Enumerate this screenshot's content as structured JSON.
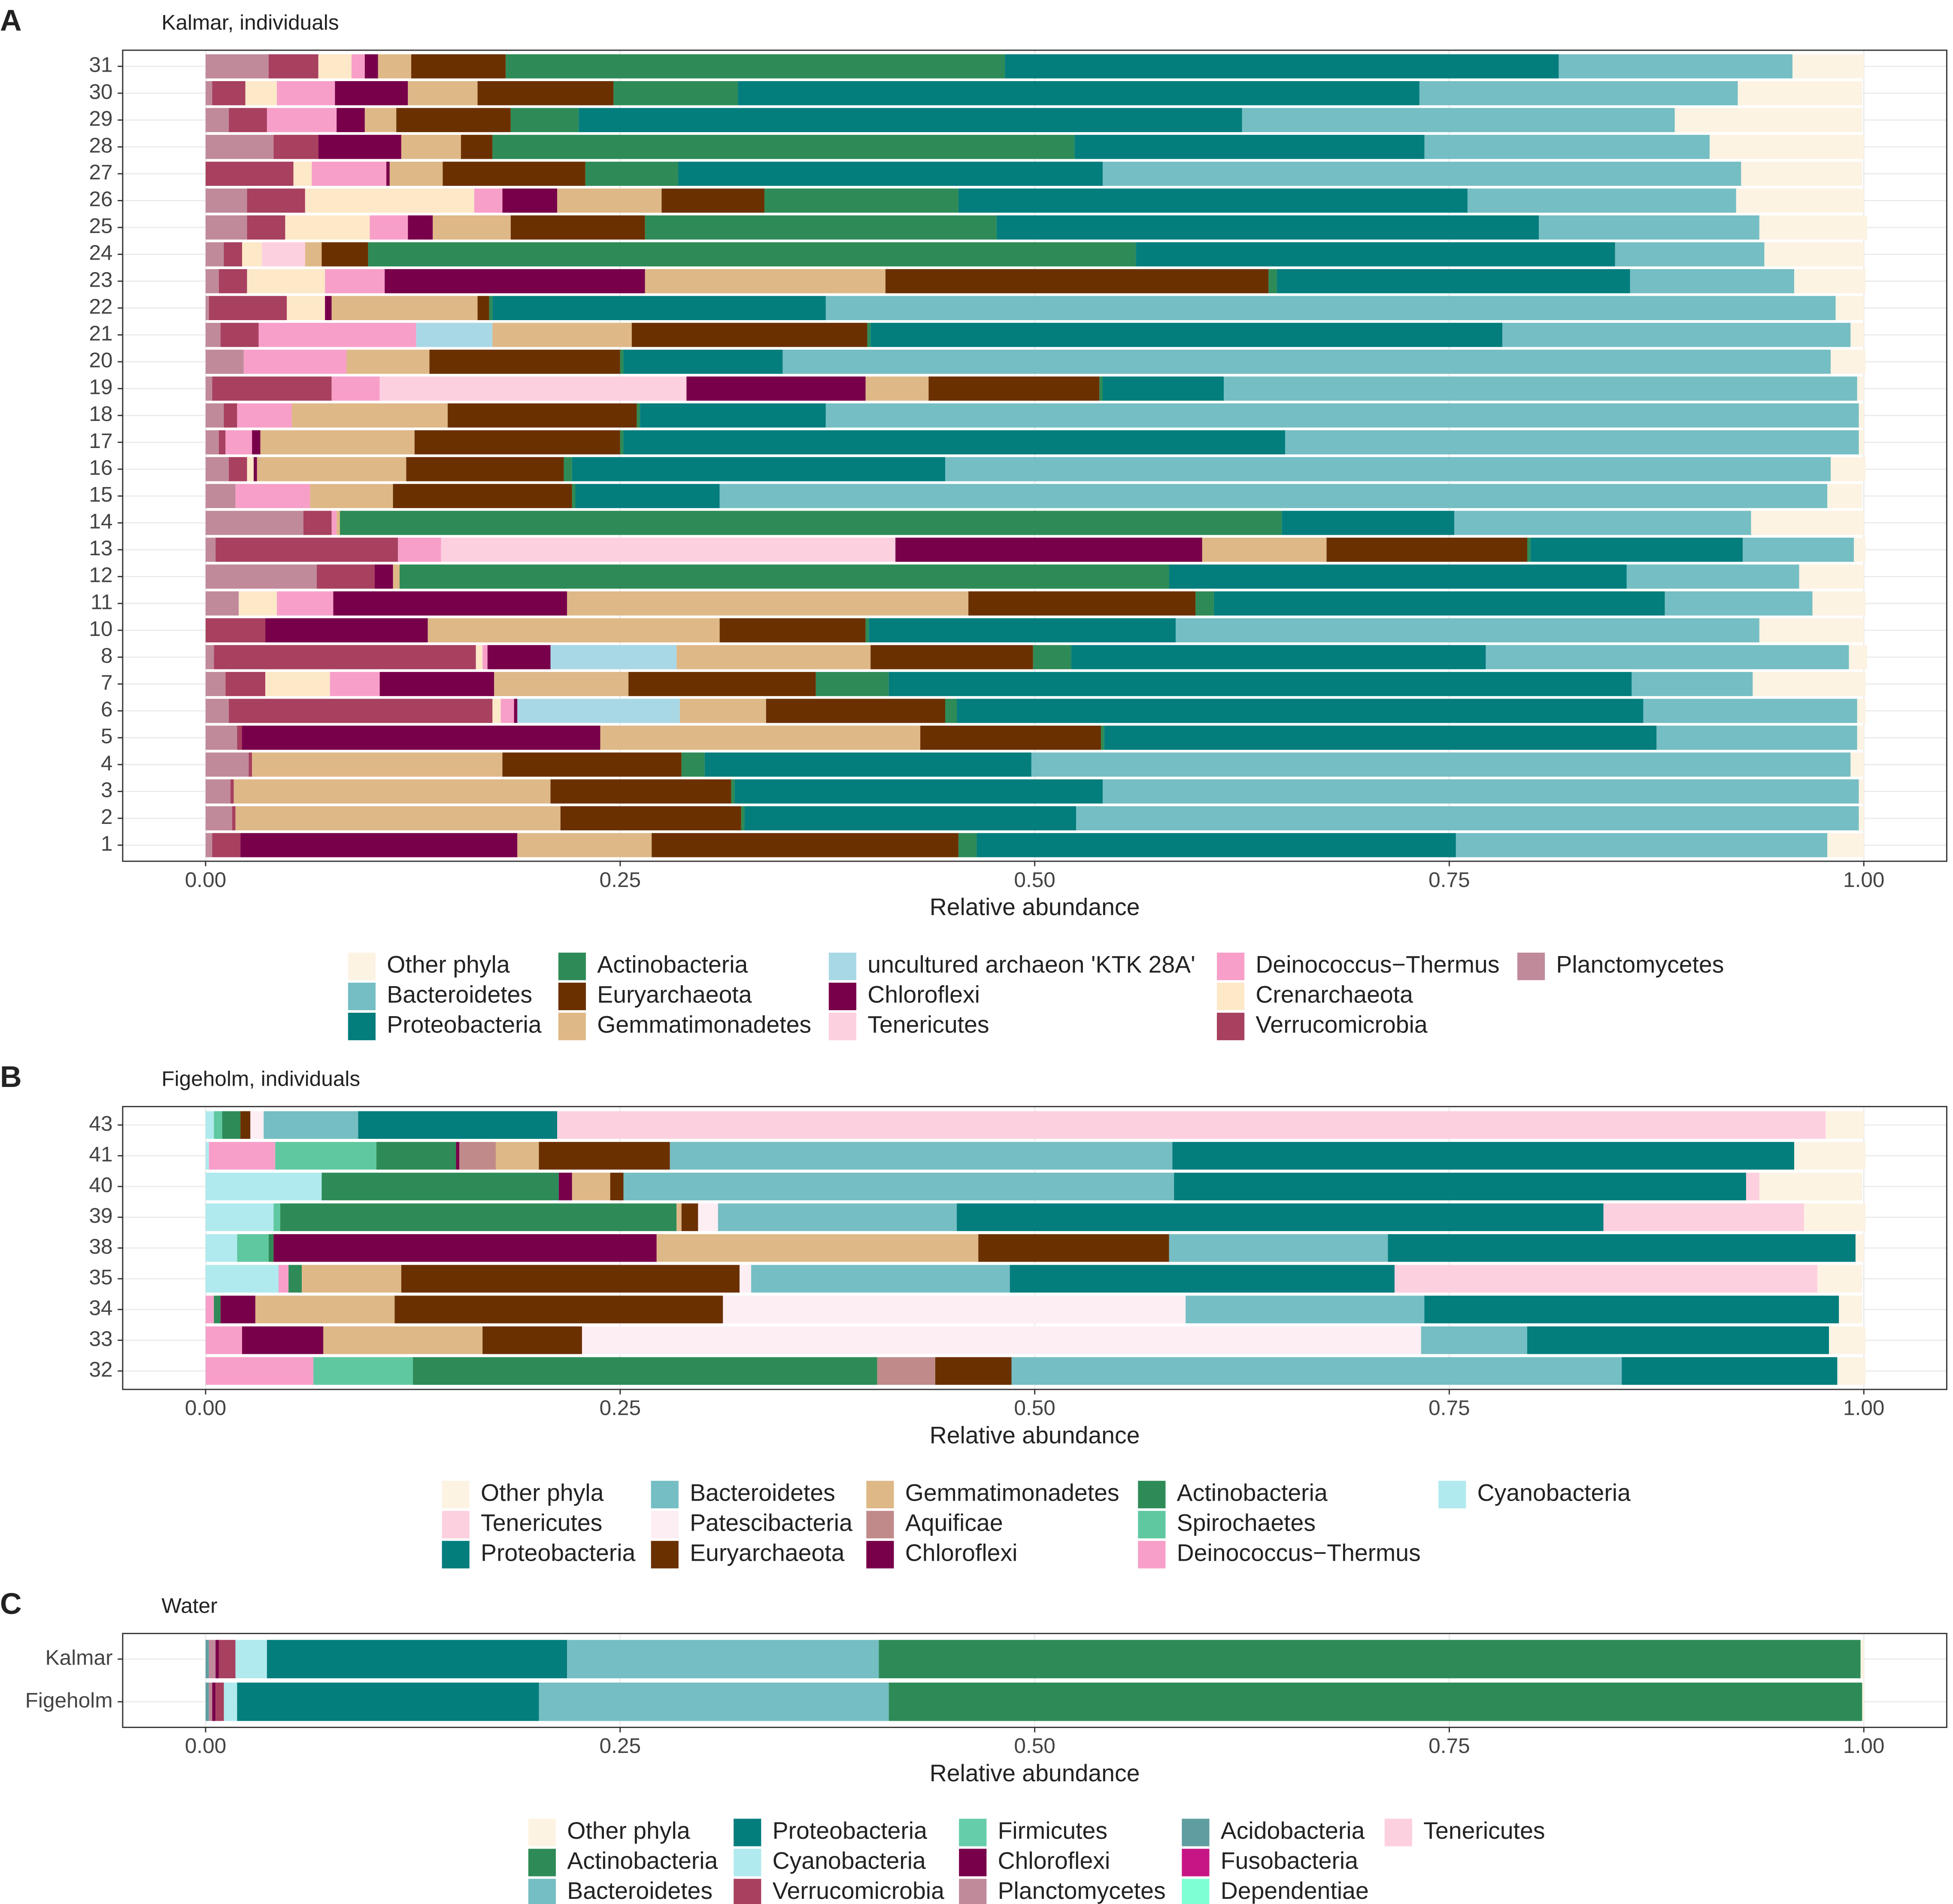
{
  "chart_data": [
    {
      "type": "bar",
      "orientation": "horizontal",
      "stacked": true,
      "label": "A",
      "title": "Kalmar, individuals",
      "xlabel": "Relative abundance",
      "categories": [
        "1",
        "2",
        "3",
        "4",
        "5",
        "6",
        "7",
        "8",
        "10",
        "11",
        "12",
        "13",
        "14",
        "15",
        "16",
        "17",
        "18",
        "19",
        "20",
        "21",
        "22",
        "23",
        "24",
        "25",
        "26",
        "27",
        "28",
        "29",
        "30",
        "31"
      ],
      "xlim": [
        -0.05,
        1.05
      ],
      "xticks": [
        {
          "value": 0,
          "label": "0.00"
        },
        {
          "value": 0.25,
          "label": "0.25"
        },
        {
          "value": 0.5,
          "label": "0.50"
        },
        {
          "value": 0.75,
          "label": "0.75"
        },
        {
          "value": 1,
          "label": "1.00"
        }
      ],
      "grid": true,
      "series": [
        {
          "name": "Other phyla",
          "color": "#fdf3e3",
          "values": [
            0.022,
            0.003,
            0.003,
            0.008,
            0.004,
            0.005,
            0.068,
            0.011,
            0.063,
            0.032,
            0.039,
            0.007,
            0.068,
            0.021,
            0.021,
            0.003,
            0.003,
            0.004,
            0.021,
            0.008,
            0.017,
            0.043,
            0.06,
            0.065,
            0.077,
            0.073,
            0.093,
            0.113,
            0.075,
            0.043
          ]
        },
        {
          "name": "Bacteroidetes",
          "color": "#75bec3",
          "values": [
            0.224,
            0.472,
            0.456,
            0.494,
            0.121,
            0.129,
            0.073,
            0.219,
            0.352,
            0.089,
            0.104,
            0.067,
            0.179,
            0.668,
            0.534,
            0.346,
            0.623,
            0.382,
            0.632,
            0.21,
            0.609,
            0.099,
            0.09,
            0.133,
            0.162,
            0.385,
            0.172,
            0.261,
            0.192,
            0.141
          ]
        },
        {
          "name": "Proteobacteria",
          "color": "#047d7d",
          "values": [
            0.289,
            0.2,
            0.222,
            0.197,
            0.333,
            0.414,
            0.448,
            0.25,
            0.185,
            0.272,
            0.276,
            0.128,
            0.104,
            0.087,
            0.225,
            0.399,
            0.112,
            0.073,
            0.096,
            0.381,
            0.201,
            0.213,
            0.289,
            0.327,
            0.307,
            0.256,
            0.211,
            0.4,
            0.411,
            0.334
          ]
        },
        {
          "name": "Actinobacteria",
          "color": "#2e8b57",
          "values": [
            0.011,
            0.002,
            0.002,
            0.014,
            0.002,
            0.007,
            0.044,
            0.023,
            0.002,
            0.011,
            0.464,
            0.002,
            0.568,
            0.002,
            0.005,
            0.002,
            0.002,
            0.002,
            0.002,
            0.002,
            0.002,
            0.005,
            0.463,
            0.212,
            0.117,
            0.056,
            0.351,
            0.041,
            0.075,
            0.301
          ]
        },
        {
          "name": "Euryarchaeota",
          "color": "#6b3000",
          "values": [
            0.185,
            0.109,
            0.109,
            0.108,
            0.109,
            0.108,
            0.113,
            0.098,
            0.088,
            0.137,
            0,
            0.121,
            0,
            0.108,
            0.095,
            0.124,
            0.114,
            0.103,
            0.115,
            0.142,
            0.007,
            0.231,
            0.028,
            0.081,
            0.062,
            0.086,
            0.019,
            0.069,
            0.082,
            0.057
          ]
        },
        {
          "name": "Gemmatimonadetes",
          "color": "#deb887",
          "values": [
            0.081,
            0.196,
            0.191,
            0.151,
            0.193,
            0.052,
            0.081,
            0.117,
            0.176,
            0.242,
            0.004,
            0.075,
            0.002,
            0.05,
            0.09,
            0.093,
            0.094,
            0.038,
            0.05,
            0.084,
            0.088,
            0.145,
            0.01,
            0.047,
            0.063,
            0.032,
            0.036,
            0.019,
            0.042,
            0.02
          ]
        },
        {
          "name": "uncultured archaeon 'KTK 28A'",
          "color": "#a8d8e6",
          "values": [
            0,
            0,
            0,
            0,
            0,
            0.098,
            0,
            0.076,
            0,
            0,
            0,
            0,
            0,
            0,
            0,
            0,
            0,
            0,
            0,
            0.046,
            0,
            0,
            0,
            0,
            0,
            0,
            0,
            0,
            0,
            0
          ]
        },
        {
          "name": "Chloroflexi",
          "color": "#78004a",
          "values": [
            0.167,
            0,
            0,
            0,
            0.216,
            0.002,
            0.069,
            0.038,
            0.098,
            0.141,
            0.011,
            0.185,
            0,
            0,
            0.002,
            0.005,
            0,
            0.108,
            0,
            0,
            0.004,
            0.157,
            0,
            0.015,
            0.033,
            0.002,
            0.05,
            0.017,
            0.044,
            0.008
          ]
        },
        {
          "name": "Tenericutes",
          "color": "#fdd0e0",
          "values": [
            0,
            0,
            0,
            0,
            0,
            0,
            0,
            0,
            0,
            0,
            0,
            0.274,
            0,
            0,
            0,
            0,
            0,
            0.185,
            0,
            0,
            0,
            0,
            0.026,
            0,
            0,
            0,
            0,
            0,
            0,
            0
          ]
        },
        {
          "name": "Deinococcus−Thermus",
          "color": "#f79fc9",
          "values": [
            0,
            0,
            0,
            0,
            0,
            0.008,
            0.03,
            0.003,
            0,
            0.034,
            0,
            0.026,
            0.003,
            0.045,
            0,
            0.016,
            0.033,
            0.029,
            0.062,
            0.095,
            0,
            0.036,
            0,
            0.023,
            0.017,
            0.045,
            0,
            0.042,
            0.035,
            0.008
          ]
        },
        {
          "name": "Crenarchaeota",
          "color": "#fde8c8",
          "values": [
            0,
            0,
            0,
            0,
            0,
            0.005,
            0.039,
            0.004,
            0,
            0.023,
            0,
            0,
            0,
            0,
            0.004,
            0,
            0,
            0,
            0,
            0,
            0.023,
            0.047,
            0.012,
            0.051,
            0.102,
            0.011,
            0,
            0,
            0.019,
            0.02
          ]
        },
        {
          "name": "Verrucomicrobia",
          "color": "#a8405f",
          "values": [
            0.017,
            0.002,
            0.002,
            0.002,
            0.003,
            0.159,
            0.024,
            0.158,
            0.036,
            0,
            0.035,
            0.11,
            0.017,
            0,
            0.011,
            0.004,
            0.008,
            0.072,
            0,
            0.023,
            0.047,
            0.017,
            0.011,
            0.023,
            0.035,
            0.053,
            0.027,
            0.023,
            0.02,
            0.03
          ]
        },
        {
          "name": "Planctomycetes",
          "color": "#c08a9a",
          "values": [
            0.004,
            0.016,
            0.015,
            0.026,
            0.019,
            0.014,
            0.012,
            0.005,
            0,
            0.02,
            0.067,
            0.006,
            0.059,
            0.018,
            0.014,
            0.008,
            0.011,
            0.004,
            0.023,
            0.009,
            0.002,
            0.008,
            0.011,
            0.025,
            0.025,
            0,
            0.041,
            0.014,
            0.004,
            0.038
          ]
        }
      ]
    },
    {
      "type": "bar",
      "orientation": "horizontal",
      "stacked": true,
      "label": "B",
      "title": "Figeholm, individuals",
      "xlabel": "Relative abundance",
      "categories": [
        "32",
        "33",
        "34",
        "35",
        "38",
        "39",
        "40",
        "41",
        "43"
      ],
      "xlim": [
        -0.05,
        1.05
      ],
      "xticks": [
        {
          "value": 0,
          "label": "0.00"
        },
        {
          "value": 0.25,
          "label": "0.25"
        },
        {
          "value": 0.5,
          "label": "0.50"
        },
        {
          "value": 0.75,
          "label": "0.75"
        },
        {
          "value": 1,
          "label": "1.00"
        }
      ],
      "grid": true,
      "series": [
        {
          "name": "Other phyla",
          "color": "#fdf3e3",
          "values": [
            0.017,
            0.022,
            0.014,
            0.027,
            0.005,
            0.037,
            0.062,
            0.043,
            0.023
          ]
        },
        {
          "name": "Tenericutes",
          "color": "#fdd0e0",
          "values": [
            0,
            0,
            0,
            0.255,
            0,
            0.121,
            0.008,
            0,
            0.765
          ]
        },
        {
          "name": "Proteobacteria",
          "color": "#047d7d",
          "values": [
            0.13,
            0.182,
            0.25,
            0.232,
            0.282,
            0.39,
            0.345,
            0.375,
            0.12
          ]
        },
        {
          "name": "Bacteroidetes",
          "color": "#75bec3",
          "values": [
            0.368,
            0.064,
            0.144,
            0.156,
            0.132,
            0.144,
            0.332,
            0.303,
            0.057
          ]
        },
        {
          "name": "Patescibacteria",
          "color": "#fdeef4",
          "values": [
            0,
            0.506,
            0.279,
            0.007,
            0,
            0.012,
            0,
            0,
            0.008
          ]
        },
        {
          "name": "Euryarchaeota",
          "color": "#6b3000",
          "values": [
            0.046,
            0.06,
            0.198,
            0.204,
            0.115,
            0.01,
            0.008,
            0.079,
            0.006
          ]
        },
        {
          "name": "Gemmatimonadetes",
          "color": "#deb887",
          "values": [
            0,
            0.096,
            0.084,
            0.06,
            0.194,
            0.003,
            0.023,
            0.026,
            0
          ]
        },
        {
          "name": "Aquificae",
          "color": "#c08a8a",
          "values": [
            0.035,
            0,
            0,
            0,
            0,
            0,
            0,
            0.022,
            0
          ]
        },
        {
          "name": "Chloroflexi",
          "color": "#78004a",
          "values": [
            0,
            0.049,
            0.021,
            0,
            0.231,
            0,
            0.008,
            0.002,
            0
          ]
        },
        {
          "name": "Actinobacteria",
          "color": "#2e8b57",
          "values": [
            0.28,
            0,
            0.004,
            0.008,
            0.003,
            0.239,
            0.143,
            0.048,
            0.011
          ]
        },
        {
          "name": "Spirochaetes",
          "color": "#5fc8a0",
          "values": [
            0.06,
            0,
            0,
            0,
            0.019,
            0.004,
            0,
            0.061,
            0.005
          ]
        },
        {
          "name": "Deinococcus−Thermus",
          "color": "#f79fc9",
          "values": [
            0.065,
            0.022,
            0.005,
            0.006,
            0,
            0,
            0,
            0.04,
            0
          ]
        },
        {
          "name": "Cyanobacteria",
          "color": "#b0eaee",
          "values": [
            0,
            0,
            0,
            0.044,
            0.019,
            0.041,
            0.07,
            0.002,
            0.005
          ]
        }
      ]
    },
    {
      "type": "bar",
      "orientation": "horizontal",
      "stacked": true,
      "label": "C",
      "title": "Water",
      "xlabel": "Relative abundance",
      "categories": [
        "Figeholm",
        "Kalmar"
      ],
      "xlim": [
        -0.05,
        1.05
      ],
      "xticks": [
        {
          "value": 0,
          "label": "0.00"
        },
        {
          "value": 0.25,
          "label": "0.25"
        },
        {
          "value": 0.5,
          "label": "0.50"
        },
        {
          "value": 0.75,
          "label": "0.75"
        },
        {
          "value": 1,
          "label": "1.00"
        }
      ],
      "grid": true,
      "series": [
        {
          "name": "Other phyla",
          "color": "#fdf3e3",
          "values": [
            0.001,
            0.002
          ]
        },
        {
          "name": "Actinobacteria",
          "color": "#2e8b57",
          "values": [
            0.587,
            0.592
          ]
        },
        {
          "name": "Bacteroidetes",
          "color": "#75bec3",
          "values": [
            0.211,
            0.188
          ]
        },
        {
          "name": "Proteobacteria",
          "color": "#047d7d",
          "values": [
            0.182,
            0.181
          ]
        },
        {
          "name": "Cyanobacteria",
          "color": "#b0eaee",
          "values": [
            0.008,
            0.019
          ]
        },
        {
          "name": "Verrucomicrobia",
          "color": "#a8405f",
          "values": [
            0.005,
            0.01
          ]
        },
        {
          "name": "Firmicutes",
          "color": "#66cdaa",
          "values": [
            0,
            0
          ]
        },
        {
          "name": "Chloroflexi",
          "color": "#78004a",
          "values": [
            0.002,
            0.002
          ]
        },
        {
          "name": "Planctomycetes",
          "color": "#c08a9a",
          "values": [
            0.002,
            0.004
          ]
        },
        {
          "name": "Acidobacteria",
          "color": "#5f9ea0",
          "values": [
            0.002,
            0.002
          ]
        },
        {
          "name": "Fusobacteria",
          "color": "#c71585",
          "values": [
            0,
            0
          ]
        },
        {
          "name": "Dependentiae",
          "color": "#7fffd4",
          "values": [
            0,
            0
          ]
        },
        {
          "name": "Tenericutes",
          "color": "#fdd0e0",
          "values": [
            0,
            0
          ]
        }
      ]
    }
  ]
}
